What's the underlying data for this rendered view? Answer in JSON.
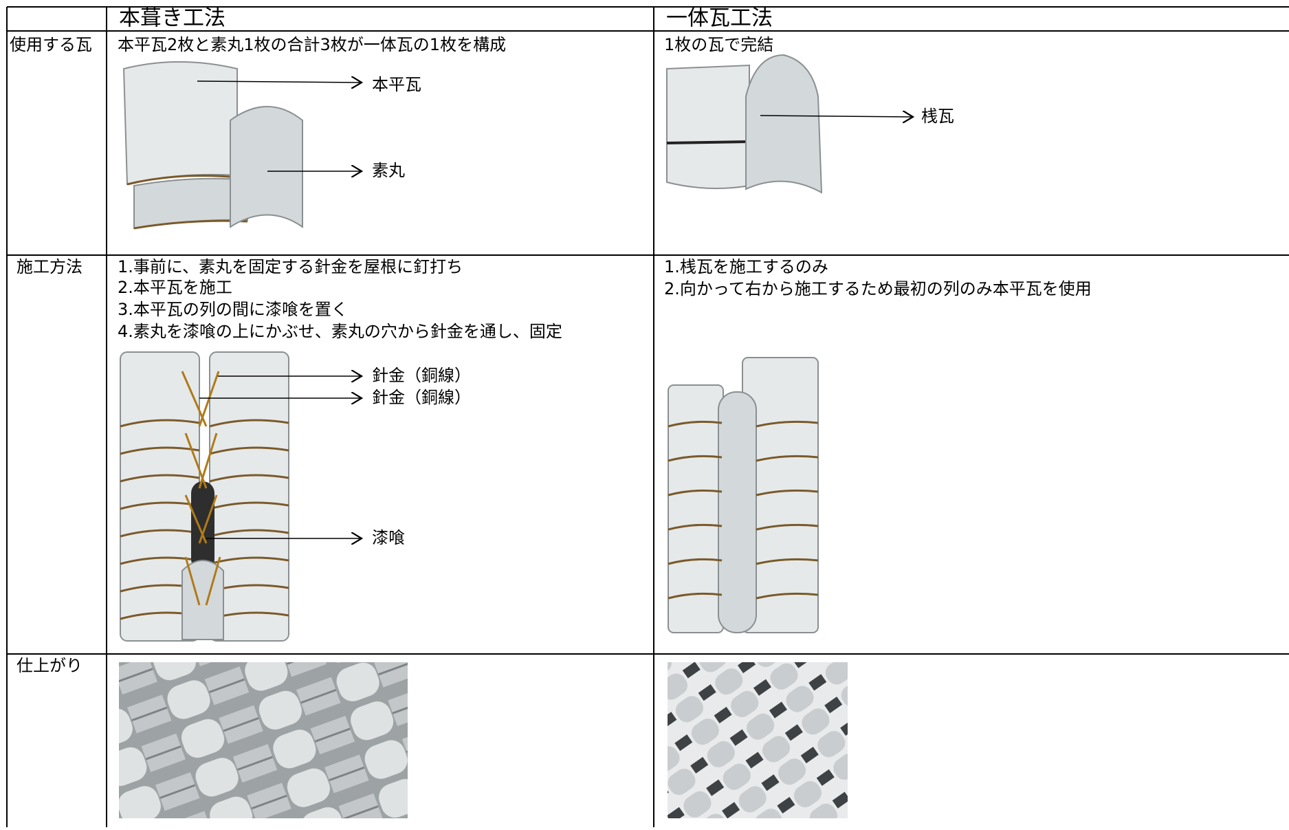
{
  "table": {
    "headers": [
      "本葺き工法",
      "一体瓦工法"
    ],
    "rows": [
      {
        "label": "使用する瓦",
        "cells": [
          {
            "lines": [
              "本平瓦2枚と素丸1枚の合計3枚が一体瓦の1枚を構成"
            ],
            "callouts": [
              "本平瓦",
              "素丸"
            ]
          },
          {
            "lines": [
              "1枚の瓦で完結"
            ],
            "callouts": [
              "桟瓦"
            ]
          }
        ]
      },
      {
        "label": "施工方法",
        "cells": [
          {
            "lines": [
              "1.事前に、素丸を固定する針金を屋根に釘打ち",
              "2.本平瓦を施工",
              "3.本平瓦の列の間に漆喰を置く",
              "4.素丸を漆喰の上にかぶせ、素丸の穴から針金を通し、固定"
            ],
            "callouts": [
              "針金（銅線）",
              "針金（銅線）",
              "漆喰"
            ]
          },
          {
            "lines": [
              "1.桟瓦を施工するのみ",
              "2.向かって右から施工するため最初の列のみ本平瓦を使用"
            ]
          }
        ]
      },
      {
        "label": "仕上がり"
      }
    ]
  }
}
